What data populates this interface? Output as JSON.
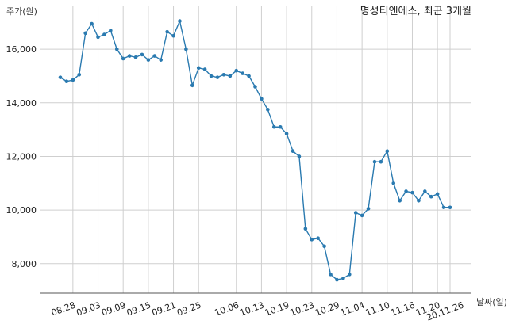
{
  "chart_data": {
    "type": "line",
    "title": "명성티엔에스, 최근 3개월",
    "ylabel": "주가(원)",
    "xlabel": "날짜(일)",
    "ylim": [
      6900,
      17600
    ],
    "yticks": [
      8000,
      10000,
      12000,
      14000,
      16000
    ],
    "ytick_labels": [
      "8,000",
      "10,000",
      "12,000",
      "14,000",
      "16,000"
    ],
    "xtick_indices": [
      2,
      6,
      10,
      14,
      18,
      22,
      28,
      32,
      36,
      40,
      44,
      48,
      52,
      56,
      60
    ],
    "xtick_labels": [
      "08.28",
      "09.03",
      "09.09",
      "09.15",
      "09.21",
      "09.25",
      "10.06",
      "10.13",
      "10.19",
      "10.23",
      "10.29",
      "11.04",
      "11.10",
      "11.16",
      "11.20"
    ],
    "last_label": "20.11.26",
    "grid": true,
    "series": [
      {
        "color": "#2a7ab0",
        "values": [
          14950,
          14800,
          14850,
          15050,
          16600,
          16950,
          16450,
          16550,
          16700,
          16000,
          15650,
          15750,
          15700,
          15800,
          15600,
          15750,
          15600,
          16650,
          16500,
          17050,
          16000,
          14650,
          15300,
          15250,
          15000,
          14950,
          15050,
          15000,
          15200,
          15100,
          15000,
          14600,
          14150,
          13750,
          13100,
          13100,
          12850,
          12200,
          12000,
          9300,
          8900,
          8950,
          8650,
          7600,
          7400,
          7450,
          7600,
          9900,
          9800,
          10050,
          11800,
          11800,
          12200,
          11000,
          10350,
          10700,
          10650,
          10350,
          10700,
          10500,
          10600,
          10100,
          10100
        ]
      }
    ]
  }
}
